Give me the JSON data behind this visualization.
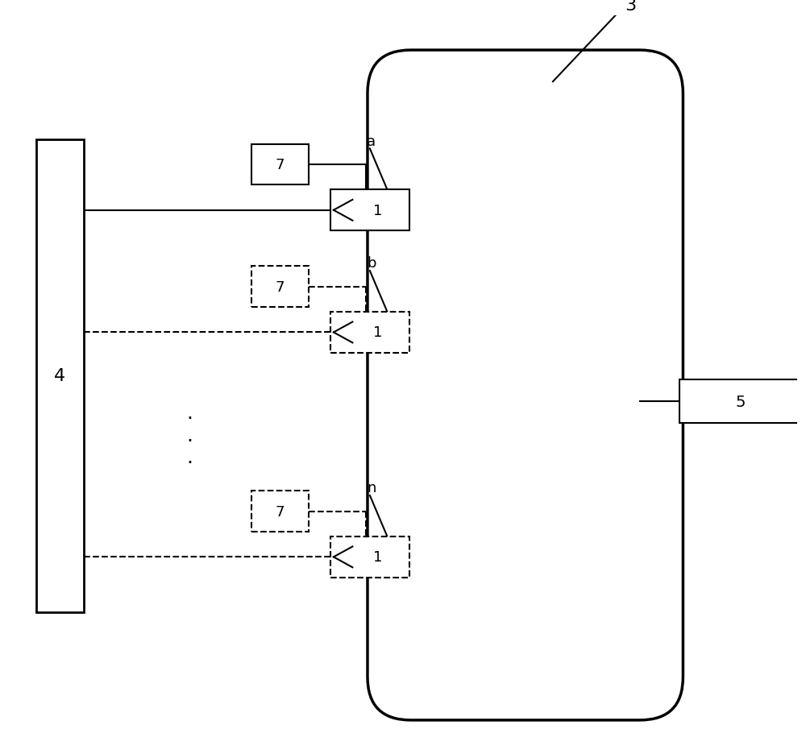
{
  "fig_width": 10.0,
  "fig_height": 9.37,
  "dpi": 100,
  "bg_color": "#ffffff",
  "line_color": "#000000",
  "label_3": "3",
  "label_4": "4",
  "label_5": "5",
  "label_7": "7",
  "label_1": "1",
  "label_a": "a",
  "label_b": "b",
  "label_n": "n"
}
